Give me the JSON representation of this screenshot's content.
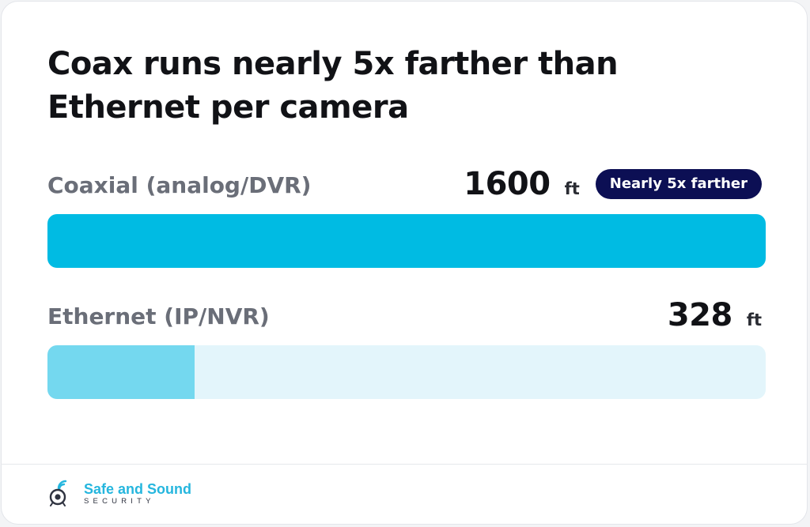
{
  "chart_data": {
    "type": "bar",
    "orientation": "horizontal",
    "title": "Coax runs nearly 5x farther than Ethernet per camera",
    "categories": [
      "Coaxial (analog/DVR)",
      "Ethernet (IP/NVR)"
    ],
    "values": [
      1600,
      328
    ],
    "value_labels": [
      "1600",
      "328"
    ],
    "unit": "ft",
    "xlim": [
      0,
      1600
    ],
    "annotations": [
      {
        "category": "Coaxial (analog/DVR)",
        "text": "Nearly 5x farther"
      }
    ],
    "grid": false,
    "legend": "none",
    "colors": {
      "coax_fill": "#00bbe3",
      "ethernet_fill": "#74d8ef",
      "ethernet_track": "#e3f5fb",
      "badge_bg": "#0c0f54"
    }
  },
  "footer": {
    "logo_name": "Safe and Sound",
    "logo_sub": "SECURITY",
    "logo_icon": "camera-wifi-icon"
  }
}
